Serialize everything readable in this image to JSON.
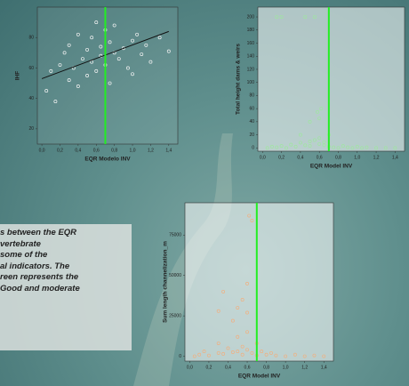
{
  "chart_data": [
    {
      "type": "scatter",
      "x_label": "EQR Modelo INV",
      "y_label": "IHF",
      "color": "#f4f4f4",
      "vline": 0.7,
      "vline_color": "#22ee22",
      "trend_line": {
        "x": [
          0,
          1.4
        ],
        "y": [
          53,
          84
        ],
        "color": "#111111"
      },
      "xlim": [
        -0.05,
        1.5
      ],
      "ylim": [
        10,
        100
      ],
      "xticks": [
        {
          "value": 0,
          "label": "0,0"
        },
        {
          "value": 0.2,
          "label": "0,2"
        },
        {
          "value": 0.4,
          "label": "0,4"
        },
        {
          "value": 0.6,
          "label": "0,6"
        },
        {
          "value": 0.8,
          "label": "0,8"
        },
        {
          "value": 1.0,
          "label": "1,0"
        },
        {
          "value": 1.2,
          "label": "1,2"
        },
        {
          "value": 1.4,
          "label": "1,4"
        }
      ],
      "yticks": [
        20,
        40,
        60,
        80
      ],
      "series": [
        {
          "x": [
            0.05,
            0.1,
            0.15,
            0.2,
            0.25,
            0.3,
            0.3,
            0.35,
            0.4,
            0.4,
            0.45,
            0.5,
            0.5,
            0.55,
            0.55,
            0.6,
            0.6,
            0.65,
            0.65,
            0.7,
            0.7,
            0.75,
            0.75,
            0.8,
            0.8,
            0.85,
            0.9,
            0.95,
            1.0,
            1.0,
            1.05,
            1.1,
            1.15,
            1.2,
            1.3,
            1.4
          ],
          "values": [
            45,
            58,
            38,
            62,
            70,
            52,
            75,
            60,
            82,
            48,
            66,
            72,
            55,
            80,
            64,
            90,
            58,
            74,
            68,
            85,
            62,
            77,
            50,
            70,
            88,
            66,
            73,
            60,
            78,
            56,
            82,
            69,
            75,
            64,
            80,
            71
          ]
        }
      ]
    },
    {
      "type": "scatter",
      "x_label": "EQR Model INV",
      "y_label": "Total height dams & weirs",
      "color": "#9fe6a0",
      "vline": 0.7,
      "vline_color": "#22ee22",
      "xlim": [
        -0.05,
        1.5
      ],
      "ylim": [
        -5,
        215
      ],
      "xticks": [
        {
          "value": 0,
          "label": "0,0"
        },
        {
          "value": 0.2,
          "label": "0,2"
        },
        {
          "value": 0.4,
          "label": "0,4"
        },
        {
          "value": 0.6,
          "label": "0,6"
        },
        {
          "value": 0.8,
          "label": "0,8"
        },
        {
          "value": 1.0,
          "label": "1,0"
        },
        {
          "value": 1.2,
          "label": "1,2"
        },
        {
          "value": 1.4,
          "label": "1,4"
        }
      ],
      "yticks": [
        0,
        20,
        40,
        60,
        80,
        100,
        120,
        140,
        160,
        180,
        200
      ],
      "series": [
        {
          "x": [
            0.05,
            0.1,
            0.15,
            0.2,
            0.25,
            0.3,
            0.35,
            0.4,
            0.45,
            0.5,
            0.5,
            0.55,
            0.6,
            0.6,
            0.65,
            0.65,
            0.7,
            0.7,
            0.75,
            0.8,
            0.85,
            0.9,
            0.95,
            1.0,
            1.05,
            1.1,
            1.2,
            1.3,
            1.4,
            0.15,
            0.2,
            0.45,
            0.55,
            0.6,
            0.5,
            0.58,
            0.62,
            0.4
          ],
          "values": [
            0,
            2,
            1,
            3,
            0,
            5,
            2,
            8,
            4,
            10,
            3,
            12,
            6,
            15,
            9,
            4,
            20,
            2,
            1,
            0,
            3,
            1,
            0,
            2,
            0,
            1,
            0,
            0,
            0,
            200,
            200,
            200,
            200,
            45,
            40,
            55,
            60,
            20
          ]
        }
      ]
    },
    {
      "type": "scatter",
      "x_label": "EQR Model INV",
      "y_label": "Sum length channelization_m",
      "color": "#f0b080",
      "vline": 0.7,
      "vline_color": "#22ee22",
      "xlim": [
        -0.05,
        1.5
      ],
      "ylim": [
        -3000,
        95000
      ],
      "xticks": [
        {
          "value": 0,
          "label": "0,0"
        },
        {
          "value": 0.2,
          "label": "0,2"
        },
        {
          "value": 0.4,
          "label": "0,4"
        },
        {
          "value": 0.6,
          "label": "0,6"
        },
        {
          "value": 0.8,
          "label": "0,8"
        },
        {
          "value": 1.0,
          "label": "1,0"
        },
        {
          "value": 1.2,
          "label": "1,2"
        },
        {
          "value": 1.4,
          "label": "1,4"
        }
      ],
      "yticks": [
        0,
        25000,
        50000,
        75000
      ],
      "series": [
        {
          "x": [
            0.05,
            0.1,
            0.15,
            0.2,
            0.3,
            0.3,
            0.35,
            0.4,
            0.45,
            0.5,
            0.5,
            0.55,
            0.55,
            0.6,
            0.6,
            0.65,
            0.7,
            0.7,
            0.75,
            0.8,
            0.85,
            0.9,
            1.0,
            1.1,
            1.2,
            1.3,
            1.4,
            0.3,
            0.35,
            0.45,
            0.5,
            0.55,
            0.6,
            0.62,
            0.65,
            0.6
          ],
          "values": [
            0,
            1000,
            3000,
            500,
            2000,
            8000,
            1500,
            5000,
            2500,
            12000,
            3000,
            6000,
            1000,
            15000,
            4000,
            2000,
            8000,
            500,
            3000,
            1000,
            2000,
            500,
            0,
            1000,
            0,
            500,
            0,
            28000,
            40000,
            22000,
            30000,
            35000,
            27000,
            87000,
            84000,
            45000
          ]
        }
      ]
    }
  ],
  "caption": {
    "lines": [
      "s between the EQR",
      "vertebrate",
      "some of the",
      "al indicators. The",
      "reen represents the",
      "Good and moderate"
    ]
  }
}
